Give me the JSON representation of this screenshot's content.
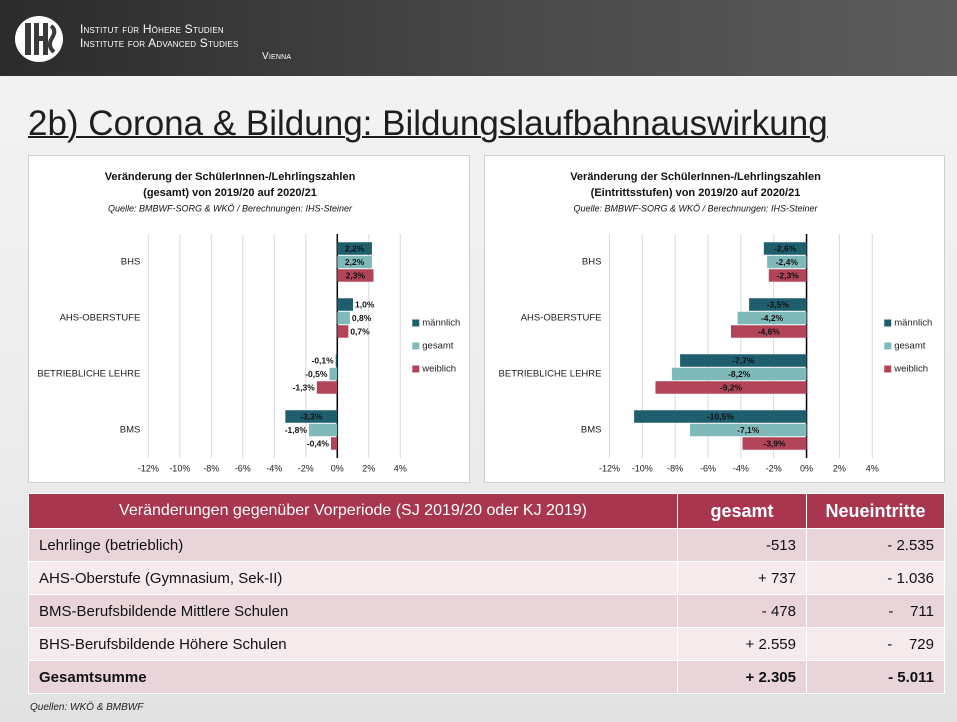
{
  "header": {
    "line1": "Institut für Höhere Studien",
    "line2": "Institute for Advanced Studies",
    "line3": "Vienna"
  },
  "title": "2b) Corona & Bildung: Bildungslaufbahnauswirkung",
  "chart_data": [
    {
      "type": "hbar",
      "title": [
        "Veränderung der SchülerInnen-/Lehrlingszahlen",
        "(gesamt) von 2019/20 auf 2020/21"
      ],
      "subtitle": "Quelle: BMBWF-SORG & WKÖ / Berechnungen: IHS-Steiner",
      "categories": [
        "BHS",
        "AHS-OBERSTUFE",
        "BETRIEBLICHE LEHRE",
        "BMS"
      ],
      "series": [
        {
          "name": "männlich",
          "color": "#1f5e6d",
          "values": [
            2.2,
            1.0,
            -0.1,
            -3.3
          ],
          "value_labels": [
            "2,2%",
            "1,0%",
            "-0,1%",
            "-3,3%"
          ]
        },
        {
          "name": "gesamt",
          "color": "#80b9b9",
          "values": [
            2.2,
            0.8,
            -0.5,
            -1.8
          ],
          "value_labels": [
            "2,2%",
            "0,8%",
            "-0,5%",
            "-1,8%"
          ]
        },
        {
          "name": "weiblich",
          "color": "#b2445a",
          "values": [
            2.3,
            0.7,
            -1.3,
            -0.4
          ],
          "value_labels": [
            "2,3%",
            "0,7%",
            "-1,3%",
            "-0,4%"
          ]
        }
      ],
      "xlim": [
        -12,
        4
      ],
      "xticks": [
        {
          "value": -12,
          "label": "-12%"
        },
        {
          "value": -10,
          "label": "-10%"
        },
        {
          "value": -8,
          "label": "-8%"
        },
        {
          "value": -6,
          "label": "-6%"
        },
        {
          "value": -4,
          "label": "-4%"
        },
        {
          "value": -2,
          "label": "-2%"
        },
        {
          "value": 0,
          "label": "0%"
        },
        {
          "value": 2,
          "label": "2%"
        },
        {
          "value": 4,
          "label": "4%"
        }
      ],
      "grid": true,
      "legend": "right"
    },
    {
      "type": "hbar",
      "title": [
        "Veränderung der SchülerInnen-/Lehrlingszahlen",
        "(Eintrittsstufen) von 2019/20 auf 2020/21"
      ],
      "subtitle": "Quelle: BMBWF-SORG & WKÖ / Berechnungen: IHS-Steiner",
      "categories": [
        "BHS",
        "AHS-OBERSTUFE",
        "BETRIEBLICHE LEHRE",
        "BMS"
      ],
      "series": [
        {
          "name": "männlich",
          "color": "#1f5e6d",
          "values": [
            -2.6,
            -3.5,
            -7.7,
            -10.5
          ],
          "value_labels": [
            "-2,6%",
            "-3,5%",
            "-7,7%",
            "-10,5%"
          ]
        },
        {
          "name": "gesamt",
          "color": "#80b9b9",
          "values": [
            -2.4,
            -4.2,
            -8.2,
            -7.1
          ],
          "value_labels": [
            "-2,4%",
            "-4,2%",
            "-8,2%",
            "-7,1%"
          ]
        },
        {
          "name": "weiblich",
          "color": "#b2445a",
          "values": [
            -2.3,
            -4.6,
            -9.2,
            -3.9
          ],
          "value_labels": [
            "-2,3%",
            "-4,6%",
            "-9,2%",
            "-3,9%"
          ]
        }
      ],
      "xlim": [
        -12,
        4
      ],
      "xticks": [
        {
          "value": -12,
          "label": "-12%"
        },
        {
          "value": -10,
          "label": "-10%"
        },
        {
          "value": -8,
          "label": "-8%"
        },
        {
          "value": -6,
          "label": "-6%"
        },
        {
          "value": -4,
          "label": "-4%"
        },
        {
          "value": -2,
          "label": "-2%"
        },
        {
          "value": 0,
          "label": "0%"
        },
        {
          "value": 2,
          "label": "2%"
        },
        {
          "value": 4,
          "label": "4%"
        }
      ],
      "grid": true,
      "legend": "right"
    }
  ],
  "table": {
    "header": [
      "Veränderungen gegenüber Vorperiode (SJ 2019/20 oder KJ 2019)",
      "gesamt",
      "Neueintritte"
    ],
    "rows": [
      [
        "Lehrlinge (betrieblich)",
        "-513",
        "- 2.535"
      ],
      [
        "AHS-Oberstufe (Gymnasium, Sek-II)",
        "+ 737",
        "- 1.036"
      ],
      [
        "BMS-Berufsbildende Mittlere Schulen",
        "- 478",
        "-    711"
      ],
      [
        "BHS-Berufsbildende Höhere Schulen",
        "+ 2.559",
        "-    729"
      ],
      [
        "Gesamtsumme",
        "+ 2.305",
        "- 5.011"
      ]
    ]
  },
  "source": "Quellen: WKÖ & BMBWF"
}
